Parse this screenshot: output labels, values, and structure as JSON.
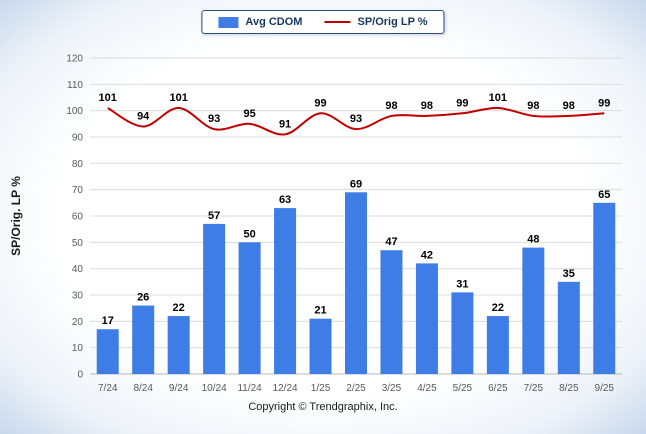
{
  "chart_data": {
    "type": "bar",
    "categories": [
      "7/24",
      "8/24",
      "9/24",
      "10/24",
      "11/24",
      "12/24",
      "1/25",
      "2/25",
      "3/25",
      "4/25",
      "5/25",
      "6/25",
      "7/25",
      "8/25",
      "9/25"
    ],
    "series": [
      {
        "name": "Avg CDOM",
        "type": "bar",
        "color": "#3e7ce6",
        "values": [
          17,
          26,
          22,
          57,
          50,
          63,
          21,
          69,
          47,
          42,
          31,
          22,
          48,
          35,
          65
        ]
      },
      {
        "name": "SP/Orig LP %",
        "type": "line",
        "color": "#c00000",
        "values": [
          101,
          94,
          101,
          93,
          95,
          91,
          99,
          93,
          98,
          98,
          99,
          101,
          98,
          98,
          99
        ]
      }
    ],
    "title": "",
    "xlabel": "",
    "ylabel": "SP/Orig. LP %",
    "ylim": [
      0,
      120
    ],
    "ytick_step": 10,
    "grid": true,
    "legend_position": "top"
  },
  "footer": "Copyright © Trendgraphix, Inc."
}
